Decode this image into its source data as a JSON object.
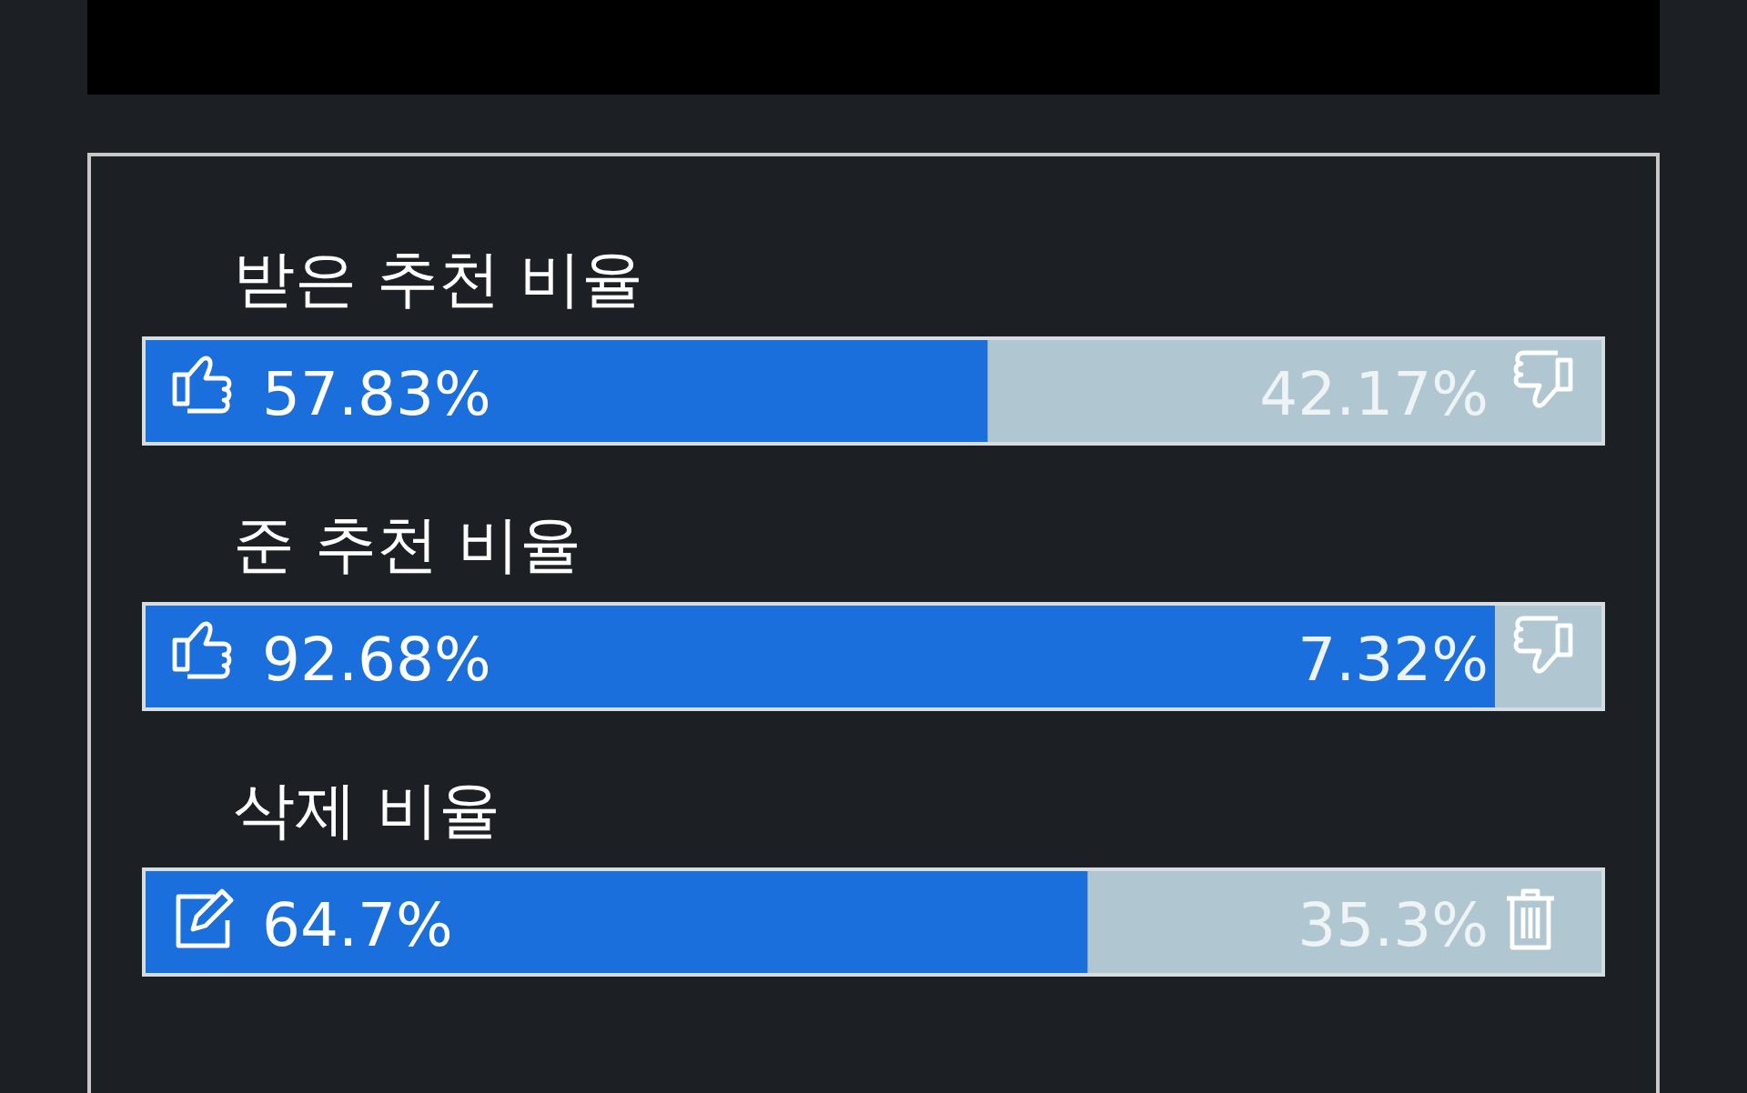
{
  "chart_data": {
    "type": "bar",
    "orientation": "horizontal",
    "stacked": true,
    "categories": [
      "받은 추천 비율",
      "준 추천 비율",
      "삭제 비율"
    ],
    "series": [
      {
        "color": "#1a6fdc",
        "values": [
          57.83,
          92.68,
          64.7
        ],
        "value_labels": [
          "57.83%",
          "92.68%",
          "64.7%"
        ]
      },
      {
        "color": "#b0c7d1",
        "values": [
          42.17,
          7.32,
          35.3
        ],
        "value_labels": [
          "42.17%",
          "7.32%",
          "35.3%"
        ]
      }
    ]
  }
}
